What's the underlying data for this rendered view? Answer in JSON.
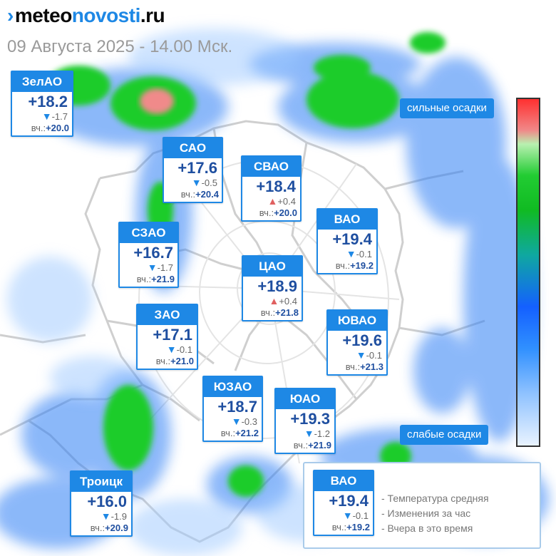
{
  "header": {
    "logo_arrow": "›",
    "logo_part1": "meteo",
    "logo_part2": "novosti",
    "logo_part3": ".ru",
    "date_line": "09 Августа 2025 - 14.00 Мск."
  },
  "scale": {
    "top_label": "сильные осадки",
    "bottom_label": "слабые осадки",
    "colors": [
      "#ff3030",
      "#f08888",
      "#22cc33",
      "#1460ff",
      "#e9f3ff"
    ]
  },
  "yesterday_prefix": "вч.:",
  "districts": [
    {
      "name": "ЗелАО",
      "temp": "+18.2",
      "trend": "down",
      "trend_icon": "▼",
      "change": "-1.7",
      "yesterday": "+20.0"
    },
    {
      "name": "САО",
      "temp": "+17.6",
      "trend": "down",
      "trend_icon": "▼",
      "change": "-0.5",
      "yesterday": "+20.4"
    },
    {
      "name": "СВАО",
      "temp": "+18.4",
      "trend": "up",
      "trend_icon": "▲",
      "change": "+0.4",
      "yesterday": "+20.0"
    },
    {
      "name": "ВАО",
      "temp": "+19.4",
      "trend": "down",
      "trend_icon": "▼",
      "change": "-0.1",
      "yesterday": "+19.2"
    },
    {
      "name": "СЗАО",
      "temp": "+16.7",
      "trend": "down",
      "trend_icon": "▼",
      "change": "-1.7",
      "yesterday": "+21.9"
    },
    {
      "name": "ЦАО",
      "temp": "+18.9",
      "trend": "up",
      "trend_icon": "▲",
      "change": "+0.4",
      "yesterday": "+21.8"
    },
    {
      "name": "ЗАО",
      "temp": "+17.1",
      "trend": "down",
      "trend_icon": "▼",
      "change": "-0.1",
      "yesterday": "+21.0"
    },
    {
      "name": "ЮВАО",
      "temp": "+19.6",
      "trend": "down",
      "trend_icon": "▼",
      "change": "-0.1",
      "yesterday": "+21.3"
    },
    {
      "name": "ЮЗАО",
      "temp": "+18.7",
      "trend": "down",
      "trend_icon": "▼",
      "change": "-0.3",
      "yesterday": "+21.2"
    },
    {
      "name": "ЮАО",
      "temp": "+19.3",
      "trend": "down",
      "trend_icon": "▼",
      "change": "-1.2",
      "yesterday": "+21.9"
    },
    {
      "name": "Троицк",
      "temp": "+16.0",
      "trend": "down",
      "trend_icon": "▼",
      "change": "-1.9",
      "yesterday": "+20.9"
    }
  ],
  "legend": {
    "example": {
      "name": "ВАО",
      "temp": "+19.4",
      "trend": "down",
      "trend_icon": "▼",
      "change": "-0.1",
      "yesterday": "+19.2"
    },
    "items": [
      "- Температура средняя",
      "- Изменения за час",
      "- Вчера в это время"
    ]
  }
}
